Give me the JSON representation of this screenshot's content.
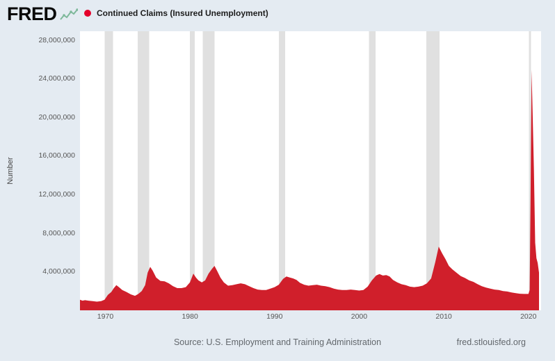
{
  "header": {
    "logo_text": "FRED",
    "series_title": "Continued Claims (Insured Unemployment)",
    "series_marker_color": "#e4002b"
  },
  "footer": {
    "source": "Source: U.S. Employment and Training Administration",
    "site": "fred.stlouisfed.org"
  },
  "colors": {
    "page_bg": "#e4ebf2",
    "plot_bg": "#ffffff",
    "logo_accent": "#7db89a",
    "tick_text": "#555555"
  },
  "chart_data": {
    "type": "area",
    "title": "Continued Claims (Insured Unemployment)",
    "ylabel": "Number",
    "xlabel": "",
    "grid": false,
    "legend_position": "top-left",
    "xlim": [
      1967,
      2021.5
    ],
    "ylim": [
      0,
      28900000
    ],
    "yticks": [
      {
        "value": 4000000,
        "label": "4,000,000"
      },
      {
        "value": 8000000,
        "label": "8,000,000"
      },
      {
        "value": 12000000,
        "label": "12,000,000"
      },
      {
        "value": 16000000,
        "label": "16,000,000"
      },
      {
        "value": 20000000,
        "label": "20,000,000"
      },
      {
        "value": 24000000,
        "label": "24,000,000"
      },
      {
        "value": 28000000,
        "label": "28,000,000"
      }
    ],
    "xticks": [
      {
        "value": 1970,
        "label": "1970"
      },
      {
        "value": 1980,
        "label": "1980"
      },
      {
        "value": 1990,
        "label": "1990"
      },
      {
        "value": 2000,
        "label": "2000"
      },
      {
        "value": 2010,
        "label": "2010"
      },
      {
        "value": 2020,
        "label": "2020"
      }
    ],
    "recession_band_color": "#e0e0e0",
    "recession_bands": [
      [
        1969.92,
        1970.92
      ],
      [
        1973.83,
        1975.17
      ],
      [
        1980.0,
        1980.58
      ],
      [
        1981.5,
        1982.92
      ],
      [
        1990.5,
        1991.25
      ],
      [
        2001.17,
        2001.92
      ],
      [
        2007.92,
        2009.5
      ],
      [
        2020.08,
        2020.33
      ]
    ],
    "series": [
      {
        "name": "Continued Claims (Insured Unemployment)",
        "color": "#d01f2b",
        "points": [
          [
            1967.0,
            1100000
          ],
          [
            1967.3,
            1000000
          ],
          [
            1967.6,
            1050000
          ],
          [
            1968.0,
            1000000
          ],
          [
            1968.5,
            950000
          ],
          [
            1969.0,
            900000
          ],
          [
            1969.5,
            950000
          ],
          [
            1969.9,
            1100000
          ],
          [
            1970.3,
            1600000
          ],
          [
            1970.7,
            1900000
          ],
          [
            1971.0,
            2300000
          ],
          [
            1971.3,
            2600000
          ],
          [
            1971.6,
            2400000
          ],
          [
            1972.0,
            2100000
          ],
          [
            1972.5,
            1900000
          ],
          [
            1973.0,
            1650000
          ],
          [
            1973.5,
            1500000
          ],
          [
            1973.9,
            1700000
          ],
          [
            1974.3,
            2000000
          ],
          [
            1974.7,
            2600000
          ],
          [
            1975.0,
            3900000
          ],
          [
            1975.3,
            4500000
          ],
          [
            1975.6,
            4100000
          ],
          [
            1976.0,
            3400000
          ],
          [
            1976.5,
            3050000
          ],
          [
            1977.0,
            3000000
          ],
          [
            1977.5,
            2800000
          ],
          [
            1978.0,
            2500000
          ],
          [
            1978.5,
            2300000
          ],
          [
            1979.0,
            2300000
          ],
          [
            1979.5,
            2400000
          ],
          [
            1980.0,
            2900000
          ],
          [
            1980.4,
            3800000
          ],
          [
            1980.7,
            3400000
          ],
          [
            1981.0,
            3100000
          ],
          [
            1981.4,
            2900000
          ],
          [
            1981.8,
            3100000
          ],
          [
            1982.2,
            3800000
          ],
          [
            1982.6,
            4300000
          ],
          [
            1982.9,
            4600000
          ],
          [
            1983.2,
            4100000
          ],
          [
            1983.6,
            3400000
          ],
          [
            1984.0,
            2900000
          ],
          [
            1984.5,
            2550000
          ],
          [
            1985.0,
            2600000
          ],
          [
            1985.5,
            2700000
          ],
          [
            1986.0,
            2800000
          ],
          [
            1986.5,
            2700000
          ],
          [
            1987.0,
            2500000
          ],
          [
            1987.5,
            2300000
          ],
          [
            1988.0,
            2150000
          ],
          [
            1988.5,
            2100000
          ],
          [
            1989.0,
            2100000
          ],
          [
            1989.5,
            2250000
          ],
          [
            1990.0,
            2400000
          ],
          [
            1990.5,
            2650000
          ],
          [
            1991.0,
            3250000
          ],
          [
            1991.4,
            3500000
          ],
          [
            1991.8,
            3400000
          ],
          [
            1992.2,
            3300000
          ],
          [
            1992.6,
            3150000
          ],
          [
            1993.0,
            2850000
          ],
          [
            1993.5,
            2650000
          ],
          [
            1994.0,
            2550000
          ],
          [
            1994.5,
            2600000
          ],
          [
            1995.0,
            2650000
          ],
          [
            1995.5,
            2550000
          ],
          [
            1996.0,
            2500000
          ],
          [
            1996.5,
            2400000
          ],
          [
            1997.0,
            2250000
          ],
          [
            1997.5,
            2150000
          ],
          [
            1998.0,
            2100000
          ],
          [
            1998.5,
            2100000
          ],
          [
            1999.0,
            2150000
          ],
          [
            1999.5,
            2100000
          ],
          [
            2000.0,
            2050000
          ],
          [
            2000.5,
            2100000
          ],
          [
            2001.0,
            2450000
          ],
          [
            2001.5,
            3100000
          ],
          [
            2002.0,
            3600000
          ],
          [
            2002.4,
            3750000
          ],
          [
            2002.8,
            3600000
          ],
          [
            2003.2,
            3650000
          ],
          [
            2003.6,
            3500000
          ],
          [
            2004.0,
            3150000
          ],
          [
            2004.5,
            2900000
          ],
          [
            2005.0,
            2700000
          ],
          [
            2005.5,
            2600000
          ],
          [
            2006.0,
            2450000
          ],
          [
            2006.5,
            2400000
          ],
          [
            2007.0,
            2450000
          ],
          [
            2007.5,
            2550000
          ],
          [
            2008.0,
            2800000
          ],
          [
            2008.5,
            3300000
          ],
          [
            2009.0,
            5000000
          ],
          [
            2009.4,
            6600000
          ],
          [
            2009.8,
            5900000
          ],
          [
            2010.2,
            5300000
          ],
          [
            2010.6,
            4600000
          ],
          [
            2011.0,
            4250000
          ],
          [
            2011.5,
            3900000
          ],
          [
            2012.0,
            3550000
          ],
          [
            2012.5,
            3350000
          ],
          [
            2013.0,
            3100000
          ],
          [
            2013.5,
            2950000
          ],
          [
            2014.0,
            2700000
          ],
          [
            2014.5,
            2500000
          ],
          [
            2015.0,
            2350000
          ],
          [
            2015.5,
            2250000
          ],
          [
            2016.0,
            2150000
          ],
          [
            2016.5,
            2100000
          ],
          [
            2017.0,
            2000000
          ],
          [
            2017.5,
            1950000
          ],
          [
            2018.0,
            1850000
          ],
          [
            2018.5,
            1780000
          ],
          [
            2019.0,
            1720000
          ],
          [
            2019.5,
            1700000
          ],
          [
            2020.0,
            1700000
          ],
          [
            2020.15,
            2100000
          ],
          [
            2020.25,
            11000000
          ],
          [
            2020.37,
            24900000
          ],
          [
            2020.5,
            20500000
          ],
          [
            2020.65,
            14500000
          ],
          [
            2020.8,
            7000000
          ],
          [
            2020.95,
            5400000
          ],
          [
            2021.1,
            4900000
          ],
          [
            2021.25,
            3900000
          ]
        ]
      }
    ]
  }
}
